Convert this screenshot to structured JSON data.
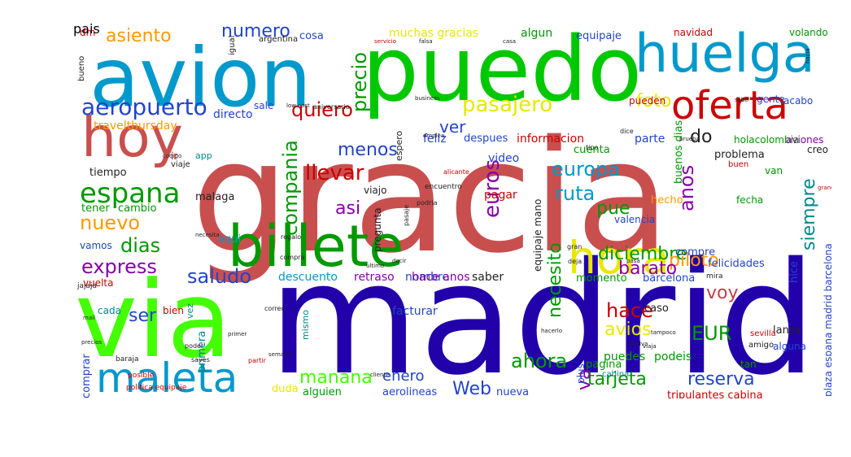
{
  "colors": {
    "red": "#c94f4f",
    "navy": "#2200aa",
    "green": "#00c800",
    "lime": "#44ff00",
    "blue": "#0099cc",
    "crimson": "#cc0000",
    "purple": "#8800aa",
    "yellow": "#e8e800",
    "orange": "#ff9900",
    "darkgreen": "#009900",
    "royal": "#2244cc",
    "cyan": "#00bbdd",
    "teal": "#008888",
    "rose": "#bb4444",
    "black": "#222222"
  },
  "words": [
    {
      "text": "gracia",
      "color": "red"
    },
    {
      "text": "madrid",
      "color": "navy"
    },
    {
      "text": "puedo",
      "color": "green"
    },
    {
      "text": "via",
      "color": "lime"
    },
    {
      "text": "avion",
      "color": "blue"
    },
    {
      "text": "huelga",
      "color": "blue"
    },
    {
      "text": "billete",
      "color": "darkgreen"
    },
    {
      "text": "oferta",
      "color": "crimson"
    },
    {
      "text": "hoy",
      "color": "red"
    },
    {
      "text": "hora",
      "color": "yellow"
    },
    {
      "text": "maleta",
      "color": "blue"
    },
    {
      "text": "espana",
      "color": "darkgreen"
    },
    {
      "text": "aeropuerto",
      "color": "royal"
    },
    {
      "text": "pasajero",
      "color": "yellow"
    },
    {
      "text": "europa",
      "color": "blue"
    },
    {
      "text": "llevar",
      "color": "crimson"
    },
    {
      "text": "quiero",
      "color": "crimson"
    },
    {
      "text": "precio",
      "color": "darkgreen"
    },
    {
      "text": "compania",
      "color": "darkgreen"
    },
    {
      "text": "euros",
      "color": "purple"
    },
    {
      "text": "ruta",
      "color": "blue"
    },
    {
      "text": "anos",
      "color": "purple"
    },
    {
      "text": "siempre",
      "color": "teal"
    },
    {
      "text": "diciembre",
      "color": "darkgreen"
    },
    {
      "text": "necesito",
      "color": "darkgreen"
    },
    {
      "text": "piloto",
      "color": "orange"
    },
    {
      "text": "barato",
      "color": "purple"
    },
    {
      "text": "express",
      "color": "purple"
    },
    {
      "text": "saludo",
      "color": "royal"
    },
    {
      "text": "nuevo",
      "color": "orange"
    },
    {
      "text": "dias",
      "color": "darkgreen"
    },
    {
      "text": "asiento",
      "color": "orange"
    },
    {
      "text": "numero",
      "color": "royal"
    },
    {
      "text": "foto",
      "color": "yellow"
    },
    {
      "text": "ver",
      "color": "royal"
    },
    {
      "text": "do",
      "color": "black"
    },
    {
      "text": "pue",
      "color": "darkgreen"
    },
    {
      "text": "asi",
      "color": "purple"
    },
    {
      "text": "menos",
      "color": "royal"
    },
    {
      "text": "voy",
      "color": "rose"
    },
    {
      "text": "hace",
      "color": "crimson"
    },
    {
      "text": "avios",
      "color": "yellow"
    },
    {
      "text": "EUR",
      "color": "darkgreen"
    },
    {
      "text": "ser",
      "color": "royal"
    },
    {
      "text": "manana",
      "color": "lime"
    },
    {
      "text": "enero",
      "color": "royal"
    },
    {
      "text": "Web",
      "color": "royal"
    },
    {
      "text": "ahora",
      "color": "darkgreen"
    },
    {
      "text": "tarjeta",
      "color": "darkgreen"
    },
    {
      "text": "reserva",
      "color": "royal"
    },
    {
      "text": "va",
      "color": "purple"
    },
    {
      "text": "travelthursday",
      "color": "orange"
    },
    {
      "text": "directo",
      "color": "royal"
    },
    {
      "text": "feliz",
      "color": "royal"
    },
    {
      "text": "despues",
      "color": "royal"
    },
    {
      "text": "informacion",
      "color": "crimson"
    },
    {
      "text": "parte",
      "color": "royal"
    },
    {
      "text": "video",
      "color": "royal"
    },
    {
      "text": "pagar",
      "color": "crimson"
    },
    {
      "text": "cuenta",
      "color": "darkgreen"
    },
    {
      "text": "problema",
      "color": "black"
    },
    {
      "text": "buenos dias",
      "color": "darkgreen"
    },
    {
      "text": "holacolombia",
      "color": "darkgreen"
    },
    {
      "text": "aviones",
      "color": "purple"
    },
    {
      "text": "valencia",
      "color": "royal"
    },
    {
      "text": "hecho",
      "color": "orange"
    },
    {
      "text": "fecha",
      "color": "darkgreen"
    },
    {
      "text": "malaga",
      "color": "black"
    },
    {
      "text": "tener",
      "color": "darkgreen"
    },
    {
      "text": "cambio",
      "color": "darkgreen"
    },
    {
      "text": "tiempo",
      "color": "black"
    },
    {
      "text": "vamos",
      "color": "royal"
    },
    {
      "text": "aqui",
      "color": "blue"
    },
    {
      "text": "saber",
      "color": "black"
    },
    {
      "text": "nombre",
      "color": "royal"
    },
    {
      "text": "descuento",
      "color": "blue"
    },
    {
      "text": "retraso",
      "color": "purple"
    },
    {
      "text": "hace anos",
      "color": "purple"
    },
    {
      "text": "momento",
      "color": "darkgreen"
    },
    {
      "text": "barcelona",
      "color": "royal"
    },
    {
      "text": "compre",
      "color": "royal"
    },
    {
      "text": "felicidades",
      "color": "royal"
    },
    {
      "text": "hice",
      "color": "royal"
    },
    {
      "text": "vuelta",
      "color": "crimson"
    },
    {
      "text": "cada",
      "color": "teal"
    },
    {
      "text": "bien",
      "color": "crimson"
    },
    {
      "text": "facturar",
      "color": "royal"
    },
    {
      "text": "caso",
      "color": "black"
    },
    {
      "text": "puedes",
      "color": "darkgreen"
    },
    {
      "text": "podeis",
      "color": "darkgreen"
    },
    {
      "text": "pagina",
      "color": "darkgreen"
    },
    {
      "text": "alguna",
      "color": "royal"
    },
    {
      "text": "tan",
      "color": "darkgreen"
    },
    {
      "text": "lanza",
      "color": "black"
    },
    {
      "text": "comprar",
      "color": "royal"
    },
    {
      "text": "primera",
      "color": "teal"
    },
    {
      "text": "duda",
      "color": "yellow"
    },
    {
      "text": "alguien",
      "color": "darkgreen"
    },
    {
      "text": "aerolineas",
      "color": "royal"
    },
    {
      "text": "nueva",
      "color": "royal"
    },
    {
      "text": "tripulantes cabina",
      "color": "crimson"
    },
    {
      "text": "plaza espana madrid barcelona",
      "color": "royal"
    },
    {
      "text": "muchas gracias",
      "color": "yellow"
    },
    {
      "text": "algun",
      "color": "darkgreen"
    },
    {
      "text": "equipaje",
      "color": "royal"
    },
    {
      "text": "navidad",
      "color": "crimson"
    },
    {
      "text": "volando",
      "color": "darkgreen"
    },
    {
      "text": "cosa",
      "color": "royal"
    },
    {
      "text": "dm",
      "color": "crimson"
    },
    {
      "text": "argentina",
      "color": "black"
    },
    {
      "text": "gente",
      "color": "royal"
    },
    {
      "text": "acabo",
      "color": "royal"
    },
    {
      "text": "sale",
      "color": "royal"
    },
    {
      "text": "pueden",
      "color": "crimson"
    },
    {
      "text": "van",
      "color": "darkgreen"
    },
    {
      "text": "creo",
      "color": "black"
    },
    {
      "text": "buen",
      "color": "crimson"
    },
    {
      "text": "ir",
      "color": "crimson"
    },
    {
      "text": "app",
      "color": "teal"
    },
    {
      "text": "viaje",
      "color": "black"
    },
    {
      "text": "viajo",
      "color": "black"
    },
    {
      "text": "espero",
      "color": "black"
    },
    {
      "text": "pregunta",
      "color": "black"
    },
    {
      "text": "equipaje mano",
      "color": "black"
    },
    {
      "text": "vez",
      "color": "teal"
    },
    {
      "text": "mismo",
      "color": "teal"
    },
    {
      "text": "plus",
      "color": "royal"
    },
    {
      "text": "cabina",
      "color": "teal"
    },
    {
      "text": "bueno",
      "color": "black"
    },
    {
      "text": "igual",
      "color": "black"
    },
    {
      "text": "aniversario",
      "color": "black"
    },
    {
      "text": "dice",
      "color": "black"
    },
    {
      "text": "amigo",
      "color": "black"
    },
    {
      "text": "sevilla",
      "color": "crimson"
    },
    {
      "text": "politica equipaje",
      "color": "crimson"
    },
    {
      "text": "posible",
      "color": "crimson"
    },
    {
      "text": "baraja",
      "color": "black"
    },
    {
      "text": "jajaja",
      "color": "black"
    },
    {
      "text": "contacto",
      "color": "crimson"
    },
    {
      "text": "empresa",
      "color": "black"
    },
    {
      "text": "tipo",
      "color": "black"
    },
    {
      "text": "mira",
      "color": "black"
    },
    {
      "text": "deja",
      "color": "black"
    },
    {
      "text": "gran",
      "color": "black"
    },
    {
      "text": "compra",
      "color": "black"
    },
    {
      "text": "regalo",
      "color": "black"
    },
    {
      "text": "alicante",
      "color": "crimson"
    },
    {
      "text": "encuentro",
      "color": "black"
    },
    {
      "text": "podria",
      "color": "black"
    },
    {
      "text": "pasaje",
      "color": "black"
    },
    {
      "text": "codigo",
      "color": "black"
    },
    {
      "text": "business",
      "color": "black"
    },
    {
      "text": "low cost",
      "color": "black"
    },
    {
      "text": "servicio",
      "color": "crimson"
    },
    {
      "text": "semana",
      "color": "black"
    },
    {
      "text": "ida",
      "color": "black"
    },
    {
      "text": "poder",
      "color": "black"
    },
    {
      "text": "saves",
      "color": "black"
    },
    {
      "text": "partir",
      "color": "crimson"
    },
    {
      "text": "precios",
      "color": "black"
    },
    {
      "text": "correo",
      "color": "black"
    },
    {
      "text": "tampoco",
      "color": "black"
    },
    {
      "text": "vuelva",
      "color": "black"
    },
    {
      "text": "hacia",
      "color": "black"
    },
    {
      "text": "necesita",
      "color": "black"
    },
    {
      "text": "grande",
      "color": "crimson"
    },
    {
      "text": "falsa",
      "color": "black"
    },
    {
      "text": "casa",
      "color": "black"
    },
    {
      "text": "santiago",
      "color": "black"
    },
    {
      "text": "mail",
      "color": "black"
    },
    {
      "text": "primer",
      "color": "black"
    },
    {
      "text": "emplea",
      "color": "black"
    },
    {
      "text": "decir",
      "color": "black"
    },
    {
      "text": "ultimo",
      "color": "black"
    },
    {
      "text": "pasa",
      "color": "black"
    },
    {
      "text": "sabe",
      "color": "black"
    },
    {
      "text": "prueba",
      "color": "black"
    },
    {
      "text": "hacerlo",
      "color": "black"
    },
    {
      "text": "viaja",
      "color": "black"
    },
    {
      "text": "cliente",
      "color": "black"
    },
    {
      "text": "pais",
      "color": "black"
    }
  ]
}
